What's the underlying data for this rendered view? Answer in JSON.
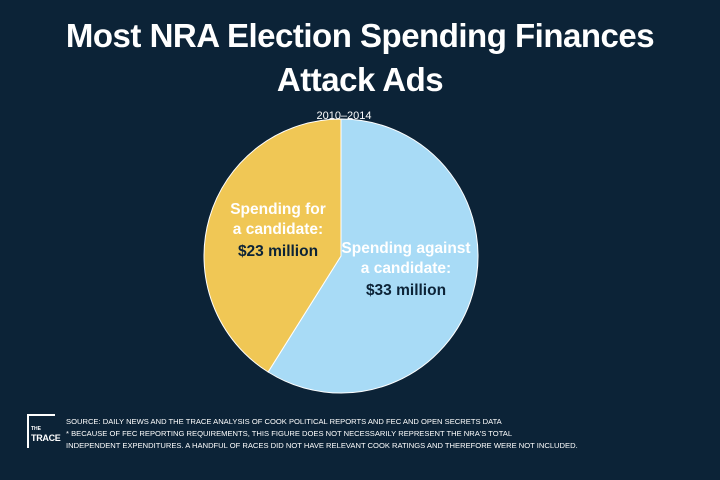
{
  "chart_data": {
    "type": "pie",
    "title_lines": [
      "Most NRA Election Spending Finances",
      "Attack Ads"
    ],
    "subtitle": "2010–2014",
    "slices": [
      {
        "label_lines": [
          "Spending for",
          "a candidate:"
        ],
        "value_text": "$23 million",
        "value": 23,
        "color": "#f0c755"
      },
      {
        "label_lines": [
          "Spending against",
          "a candidate:"
        ],
        "value_text": "$33 million",
        "value": 33,
        "color": "#a8dbf6"
      }
    ]
  },
  "footer": {
    "logo_small": "THE",
    "logo_big": "TRACE",
    "source": "SOURCE: DAILY NEWS AND THE TRACE ANALYSIS OF COOK POLITICAL REPORTS AND FEC AND OPEN SECRETS DATA",
    "note_line1": "* BECAUSE OF FEC REPORTING REQUIREMENTS, THIS FIGURE DOES NOT NECESSARILY REPRESENT THE NRA'S TOTAL",
    "note_line2": "INDEPENDENT EXPENDITURES. A HANDFUL OF RACES DID NOT HAVE RELEVANT COOK RATINGS AND THEREFORE WERE NOT INCLUDED."
  }
}
